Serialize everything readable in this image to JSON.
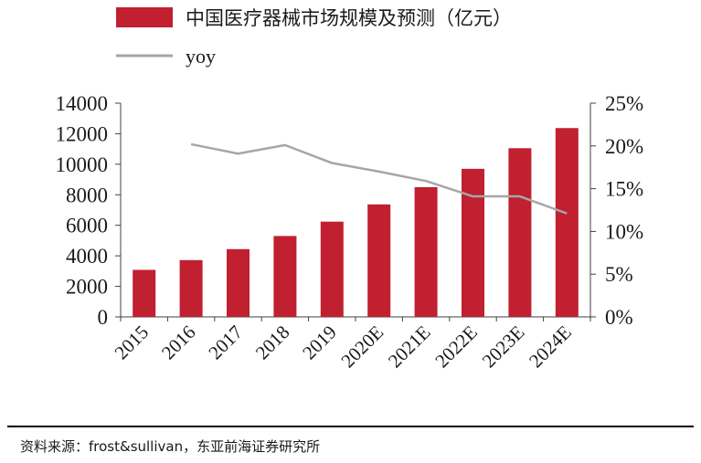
{
  "chart_data": {
    "type": "bar",
    "categories": [
      "2015",
      "2016",
      "2017",
      "2018",
      "2019",
      "2020E",
      "2021E",
      "2022E",
      "2023E",
      "2024E"
    ],
    "series": [
      {
        "name": "中国医疗器械市场规模及预测（亿元）",
        "type": "bar",
        "axis": "left",
        "color": "#C0202F",
        "values": [
          3080,
          3720,
          4440,
          5300,
          6240,
          7370,
          8500,
          9700,
          11050,
          12370
        ]
      },
      {
        "name": "yoy",
        "type": "line",
        "axis": "right",
        "color": "#A6A6A6",
        "values": [
          null,
          0.202,
          0.191,
          0.201,
          0.18,
          0.17,
          0.159,
          0.141,
          0.141,
          0.121
        ]
      }
    ],
    "y_left": {
      "min": 0,
      "max": 14000,
      "ticks": [
        0,
        2000,
        4000,
        6000,
        8000,
        10000,
        12000,
        14000
      ],
      "tick_labels": [
        "0",
        "2000",
        "4000",
        "6000",
        "8000",
        "10000",
        "12000",
        "14000"
      ]
    },
    "y_right": {
      "min": 0,
      "max": 0.25,
      "ticks": [
        0,
        0.05,
        0.1,
        0.15,
        0.2,
        0.25
      ],
      "tick_labels": [
        "0%",
        "5%",
        "10%",
        "15%",
        "20%",
        "25%"
      ]
    },
    "grid": false,
    "legend_position": "top-left"
  },
  "source_text": "资料来源：frost&sullivan，东亚前海证券研究所"
}
